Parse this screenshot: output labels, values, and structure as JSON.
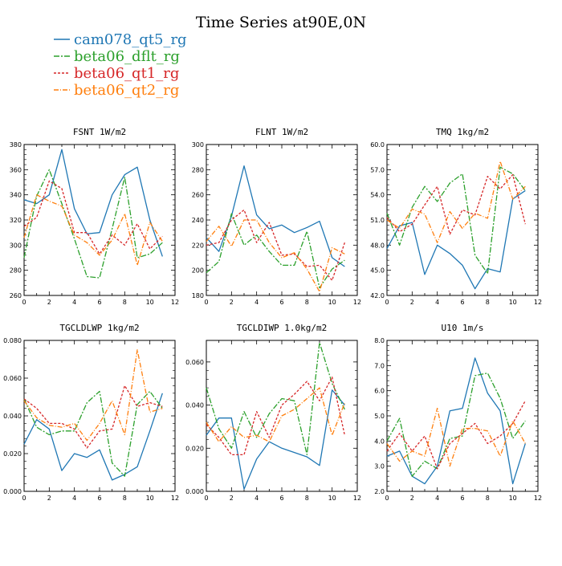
{
  "figure": {
    "title": "Time Series at90E,0N"
  },
  "colors": {
    "cam078_qt5_rg": "#1f77b4",
    "beta06_dflt_rg": "#2ca02c",
    "beta06_qt1_rg": "#d62728",
    "beta06_qt2_rg": "#ff7f0e"
  },
  "legend": [
    {
      "label": "cam078_qt5_rg",
      "color": "#1f77b4",
      "dash": ""
    },
    {
      "label": "beta06_dflt_rg",
      "color": "#2ca02c",
      "dash": "7,2,2,2"
    },
    {
      "label": "beta06_qt1_rg",
      "color": "#d62728",
      "dash": "3,2"
    },
    {
      "label": "beta06_qt2_rg",
      "color": "#ff7f0e",
      "dash": "6,2,1,2"
    }
  ],
  "chart_data": [
    {
      "type": "line",
      "title": "FSNT  1W/m2",
      "x": [
        0,
        1,
        2,
        3,
        4,
        5,
        6,
        7,
        8,
        9,
        10,
        11
      ],
      "xlim": [
        0,
        12
      ],
      "xticks": [
        "0",
        "2",
        "4",
        "6",
        "8",
        "10",
        "12"
      ],
      "ylim": [
        260,
        380
      ],
      "yticks": [
        "260",
        "280",
        "300",
        "320",
        "340",
        "360",
        "380"
      ],
      "series": [
        {
          "name": "cam078_qt5_rg",
          "values": [
            336,
            333,
            340,
            376,
            329,
            309,
            310,
            340,
            356,
            362,
            320,
            291
          ]
        },
        {
          "name": "beta06_dflt_rg",
          "values": [
            290,
            339,
            360,
            333,
            305,
            275,
            274,
            313,
            354,
            290,
            293,
            302
          ]
        },
        {
          "name": "beta06_qt1_rg",
          "values": [
            315,
            322,
            351,
            345,
            310,
            310,
            293,
            308,
            300,
            317,
            297,
            307
          ]
        },
        {
          "name": "beta06_qt2_rg",
          "values": [
            306,
            340,
            335,
            331,
            308,
            302,
            292,
            304,
            325,
            284,
            318,
            303
          ]
        }
      ]
    },
    {
      "type": "line",
      "title": "FLNT  1W/m2",
      "x": [
        0,
        1,
        2,
        3,
        4,
        5,
        6,
        7,
        8,
        9,
        10,
        11
      ],
      "xlim": [
        0,
        12
      ],
      "xticks": [
        "0",
        "2",
        "4",
        "6",
        "8",
        "10",
        "12"
      ],
      "ylim": [
        180,
        300
      ],
      "yticks": [
        "180",
        "200",
        "220",
        "240",
        "260",
        "280",
        "300"
      ],
      "series": [
        {
          "name": "cam078_qt5_rg",
          "values": [
            226,
            215,
            243,
            283,
            244,
            233,
            236,
            230,
            234,
            239,
            210,
            203
          ]
        },
        {
          "name": "beta06_dflt_rg",
          "values": [
            198,
            207,
            245,
            220,
            228,
            215,
            204,
            204,
            231,
            186,
            201,
            208
          ]
        },
        {
          "name": "beta06_qt1_rg",
          "values": [
            220,
            222,
            240,
            248,
            222,
            238,
            212,
            213,
            203,
            204,
            192,
            222
          ]
        },
        {
          "name": "beta06_qt2_rg",
          "values": [
            223,
            235,
            219,
            240,
            240,
            222,
            210,
            214,
            201,
            183,
            218,
            213
          ]
        }
      ]
    },
    {
      "type": "line",
      "title": "TMQ  1kg/m2",
      "x": [
        0,
        1,
        2,
        3,
        4,
        5,
        6,
        7,
        8,
        9,
        10,
        11
      ],
      "xlim": [
        0,
        12
      ],
      "xticks": [
        "0",
        "2",
        "4",
        "6",
        "8",
        "10",
        "12"
      ],
      "ylim": [
        42.0,
        60.0
      ],
      "yticks": [
        "42.0",
        "45.0",
        "48.0",
        "51.0",
        "54.0",
        "57.0",
        "60.0"
      ],
      "series": [
        {
          "name": "cam078_qt5_rg",
          "values": [
            47.6,
            50.3,
            50.7,
            44.5,
            48.0,
            47.0,
            45.6,
            42.8,
            45.2,
            44.8,
            53.5,
            54.5
          ]
        },
        {
          "name": "beta06_dflt_rg",
          "values": [
            51.8,
            48.0,
            52.5,
            55.0,
            53.2,
            55.4,
            56.5,
            46.8,
            44.6,
            57.3,
            56.5,
            54.5
          ]
        },
        {
          "name": "beta06_qt1_rg",
          "values": [
            51.3,
            49.6,
            50.5,
            52.8,
            55.0,
            49.3,
            52.2,
            51.6,
            56.2,
            54.7,
            56.4,
            50.5
          ]
        },
        {
          "name": "beta06_qt2_rg",
          "values": [
            51.0,
            50.0,
            52.3,
            51.7,
            48.3,
            52.0,
            50.0,
            51.8,
            51.2,
            58.0,
            53.5,
            55.0
          ]
        }
      ]
    },
    {
      "type": "line",
      "title": "TGCLDLWP  1kg/m2",
      "x": [
        0,
        1,
        2,
        3,
        4,
        5,
        6,
        7,
        8,
        9,
        10,
        11
      ],
      "xlim": [
        0,
        12
      ],
      "xticks": [
        "0",
        "2",
        "4",
        "6",
        "8",
        "10",
        "12"
      ],
      "ylim": [
        0.0,
        0.08
      ],
      "yticks": [
        "0.000",
        "0.020",
        "0.040",
        "0.060",
        "0.080"
      ],
      "series": [
        {
          "name": "cam078_qt5_rg",
          "values": [
            0.025,
            0.038,
            0.033,
            0.011,
            0.02,
            0.018,
            0.022,
            0.006,
            0.009,
            0.013,
            0.032,
            0.052
          ]
        },
        {
          "name": "beta06_dflt_rg",
          "values": [
            0.049,
            0.034,
            0.03,
            0.032,
            0.032,
            0.047,
            0.053,
            0.015,
            0.008,
            0.046,
            0.053,
            0.044
          ]
        },
        {
          "name": "beta06_qt1_rg",
          "values": [
            0.049,
            0.044,
            0.036,
            0.036,
            0.033,
            0.023,
            0.032,
            0.033,
            0.056,
            0.045,
            0.047,
            0.045
          ]
        },
        {
          "name": "beta06_qt2_rg",
          "values": [
            0.048,
            0.039,
            0.035,
            0.034,
            0.036,
            0.027,
            0.036,
            0.048,
            0.03,
            0.075,
            0.042,
            0.044
          ]
        }
      ]
    },
    {
      "type": "line",
      "title": "TGCLDIWP  1.0kg/m2",
      "x": [
        0,
        1,
        2,
        3,
        4,
        5,
        6,
        7,
        8,
        9,
        10,
        11
      ],
      "xlim": [
        0,
        12
      ],
      "xticks": [
        "0",
        "2",
        "4",
        "6",
        "8",
        "10",
        "12"
      ],
      "ylim": [
        0.0,
        0.07
      ],
      "yticks": [
        "0.000",
        "0.020",
        "0.040",
        "0.060"
      ],
      "series": [
        {
          "name": "cam078_qt5_rg",
          "values": [
            0.026,
            0.034,
            0.034,
            0.001,
            0.015,
            0.023,
            0.02,
            0.018,
            0.016,
            0.012,
            0.047,
            0.04
          ]
        },
        {
          "name": "beta06_dflt_rg",
          "values": [
            0.048,
            0.029,
            0.02,
            0.037,
            0.025,
            0.036,
            0.043,
            0.042,
            0.017,
            0.069,
            0.05,
            0.038
          ]
        },
        {
          "name": "beta06_qt1_rg",
          "values": [
            0.031,
            0.025,
            0.017,
            0.017,
            0.037,
            0.025,
            0.04,
            0.045,
            0.051,
            0.042,
            0.053,
            0.026
          ]
        },
        {
          "name": "beta06_qt2_rg",
          "values": [
            0.032,
            0.023,
            0.03,
            0.025,
            0.026,
            0.023,
            0.035,
            0.038,
            0.043,
            0.048,
            0.026,
            0.041
          ]
        }
      ]
    },
    {
      "type": "line",
      "title": "U10  1m/s",
      "x": [
        0,
        1,
        2,
        3,
        4,
        5,
        6,
        7,
        8,
        9,
        10,
        11
      ],
      "xlim": [
        0,
        12
      ],
      "xticks": [
        "0",
        "2",
        "4",
        "6",
        "8",
        "10",
        "12"
      ],
      "ylim": [
        2.0,
        8.0
      ],
      "yticks": [
        "2.0",
        "3.0",
        "4.0",
        "5.0",
        "6.0",
        "7.0",
        "8.0"
      ],
      "series": [
        {
          "name": "cam078_qt5_rg",
          "values": [
            3.4,
            3.6,
            2.6,
            2.3,
            3.0,
            5.2,
            5.3,
            7.3,
            5.9,
            5.2,
            2.3,
            3.9
          ]
        },
        {
          "name": "beta06_dflt_rg",
          "values": [
            4.0,
            4.9,
            2.6,
            3.2,
            2.9,
            4.1,
            4.2,
            6.6,
            6.7,
            5.7,
            4.1,
            4.8
          ]
        },
        {
          "name": "beta06_qt1_rg",
          "values": [
            3.6,
            4.3,
            3.6,
            4.2,
            2.9,
            3.9,
            4.3,
            4.7,
            3.9,
            4.2,
            4.7,
            5.6
          ]
        },
        {
          "name": "beta06_qt2_rg",
          "values": [
            3.9,
            3.2,
            3.6,
            3.4,
            5.3,
            3.0,
            4.5,
            4.5,
            4.4,
            3.4,
            4.8,
            3.9
          ]
        }
      ]
    }
  ]
}
